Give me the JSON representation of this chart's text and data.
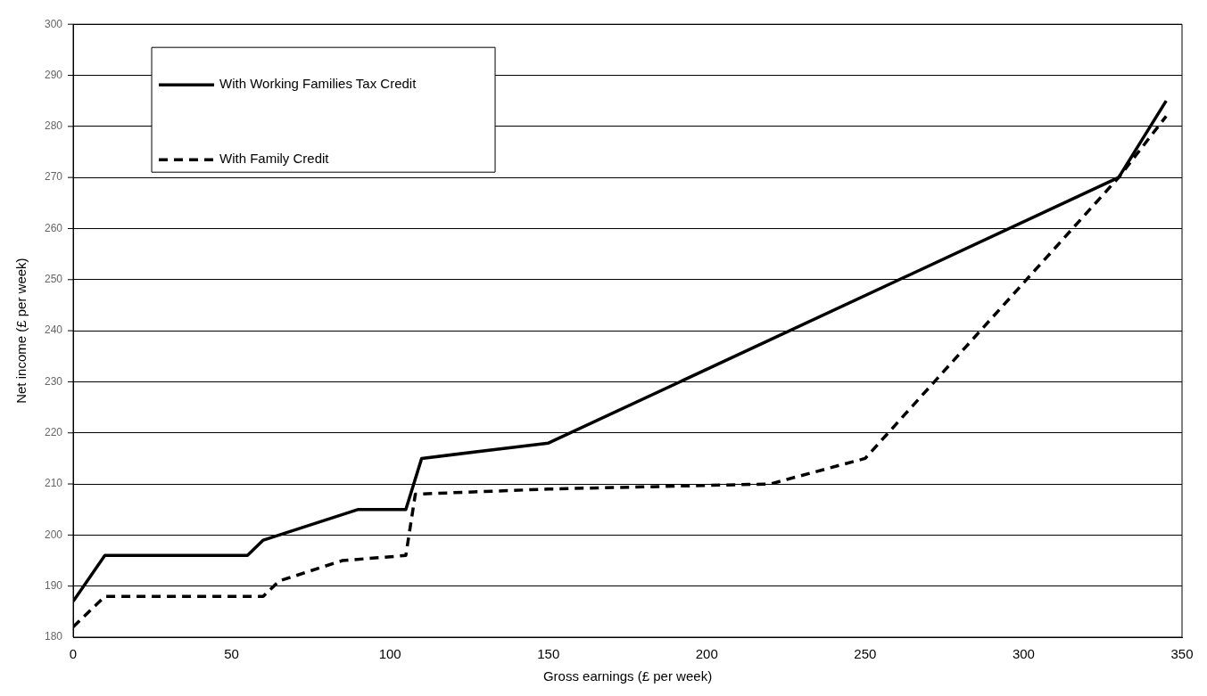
{
  "chart_data": {
    "type": "line",
    "xlabel": "Gross earnings (£ per week)",
    "ylabel": "Net income (£ per week)",
    "xlim": [
      0,
      350
    ],
    "xticks": [
      0,
      50,
      100,
      150,
      200,
      250,
      300,
      350
    ],
    "ylim": [
      180,
      300
    ],
    "yticks": [
      180,
      190,
      200,
      210,
      220,
      230,
      240,
      250,
      260,
      270,
      280,
      290,
      300
    ],
    "grid": "y",
    "legend": "top left",
    "marker": "none",
    "series": [
      {
        "name": "With Working Families Tax Credit",
        "color": "#000000",
        "line_style": "solid",
        "x": [
          0,
          10,
          55,
          60,
          90,
          105,
          110,
          150,
          330,
          345
        ],
        "values": [
          187,
          196,
          196,
          199,
          205,
          205,
          215,
          218,
          270,
          285
        ]
      },
      {
        "name": "With Family Credit",
        "color": "#000000",
        "line_style": "dashed",
        "x": [
          0,
          10,
          60,
          65,
          85,
          105,
          108,
          150,
          220,
          250,
          330,
          345
        ],
        "values": [
          182,
          188,
          188,
          191,
          195,
          196,
          208,
          209,
          210,
          215,
          270,
          282
        ]
      }
    ]
  }
}
